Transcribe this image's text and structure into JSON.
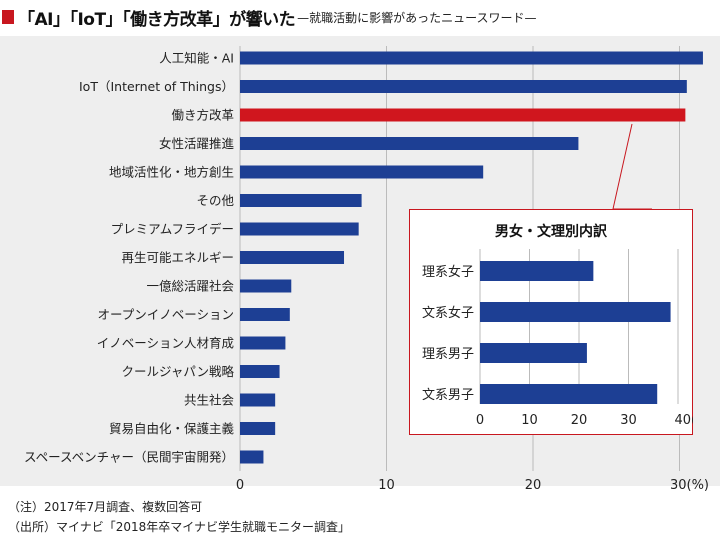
{
  "title": {
    "main": "「AI」「IoT」「働き方改革」が響いた",
    "sub": "—就職活動に影響があったニュースワード—"
  },
  "notes": {
    "note1": "（注）2017年7月調査、複数回答可",
    "note2": "（出所）マイナビ「2018年卒マイナビ学生就職モニター調査」"
  },
  "colors": {
    "bar": "#1d3f94",
    "highlight": "#d0161e",
    "panel_background": "#eeeeee",
    "accent": "#c8171f"
  },
  "chart_data": [
    {
      "type": "bar",
      "orientation": "horizontal",
      "title": "",
      "xlabel": "",
      "ylabel": "",
      "unit": "(%)",
      "xlim": [
        0,
        32
      ],
      "ticks": [
        0,
        10,
        20,
        30
      ],
      "tick_labels": [
        "0",
        "10",
        "20",
        "30(%)"
      ],
      "grid": true,
      "highlight_category": "働き方改革",
      "categories": [
        "人工知能・AI",
        "IoT（Internet of Things）",
        "働き方改革",
        "女性活躍推進",
        "地域活性化・地方創生",
        "その他",
        "プレミアムフライデー",
        "再生可能エネルギー",
        "一億総活躍社会",
        "オープンイノベーション",
        "イノベーション人材育成",
        "クールジャパン戦略",
        "共生社会",
        "貿易自由化・保護主義",
        "スペースベンチャー（民間宇宙開発）"
      ],
      "values": [
        31.6,
        30.5,
        30.4,
        23.1,
        16.6,
        8.3,
        8.1,
        7.1,
        3.5,
        3.4,
        3.1,
        2.7,
        2.4,
        2.4,
        1.6
      ]
    },
    {
      "type": "bar",
      "orientation": "horizontal",
      "title": "男女・文理別内訳",
      "xlabel": "",
      "ylabel": "",
      "unit": "(%)",
      "xlim": [
        0,
        42
      ],
      "ticks": [
        0,
        10,
        20,
        30,
        40
      ],
      "tick_labels": [
        "0",
        "10",
        "20",
        "30",
        "40(%)"
      ],
      "grid": true,
      "categories": [
        "理系女子",
        "文系女子",
        "理系男子",
        "文系男子"
      ],
      "values": [
        22.9,
        38.5,
        21.6,
        35.8
      ]
    }
  ]
}
